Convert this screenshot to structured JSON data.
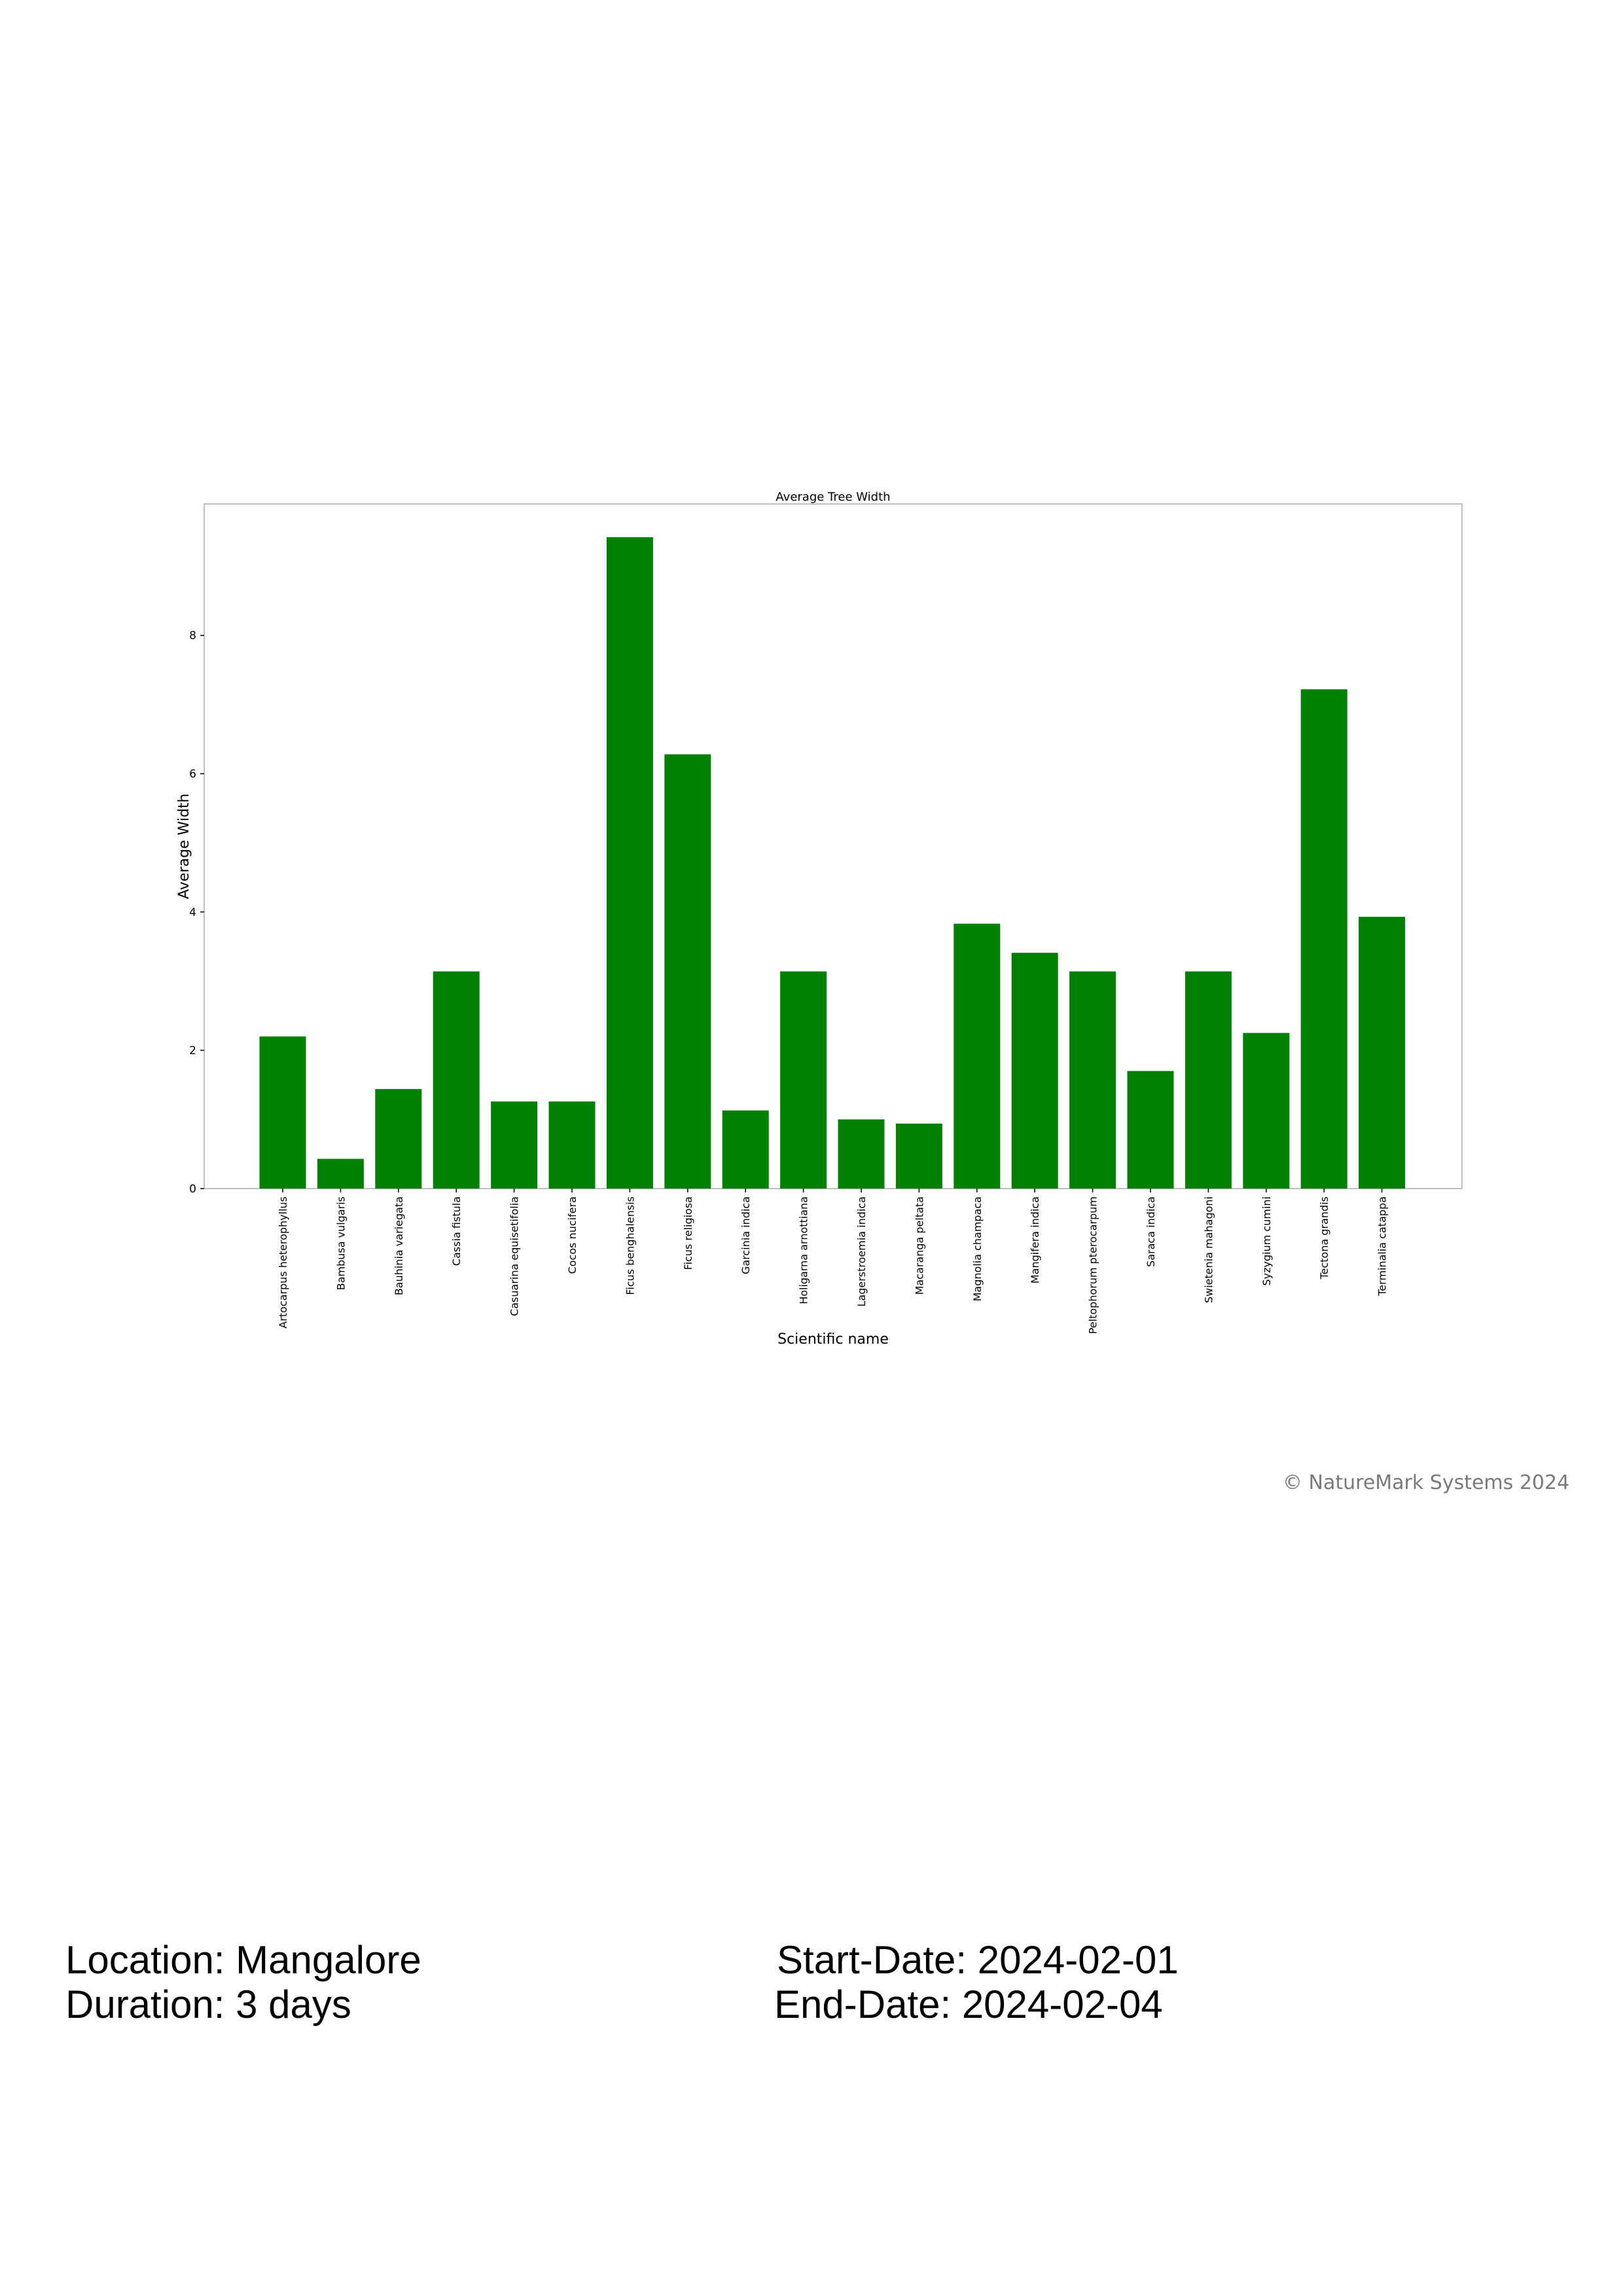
{
  "chart_data": {
    "type": "bar",
    "title": "Average Tree Width",
    "xlabel": "Scientific name",
    "ylabel": "Average Width",
    "categories": [
      "Artocarpus heterophyllus",
      "Bambusa vulgaris",
      "Bauhinia variegata",
      "Cassia fistula",
      "Casuarina equisetifolia",
      "Cocos nucifera",
      "Ficus benghalensis",
      "Ficus religiosa",
      "Garcinia indica",
      "Holigarna arnottiana",
      "Lagerstroemia indica",
      "Macaranga peltata",
      "Magnolia champaca",
      "Mangifera indica",
      "Peltophorum pterocarpum",
      "Saraca indica",
      "Swietenia mahagoni",
      "Syzygium cumini",
      "Tectona grandis",
      "Terminalia catappa"
    ],
    "values": [
      2.2,
      0.43,
      1.44,
      3.14,
      1.26,
      1.26,
      9.42,
      6.28,
      1.13,
      3.14,
      1.0,
      0.94,
      3.83,
      3.41,
      3.14,
      1.7,
      3.14,
      2.25,
      7.22,
      3.93
    ],
    "yticks": [
      0,
      2,
      4,
      6,
      8
    ],
    "ylim": [
      0,
      9.9
    ],
    "bar_color": "#008000",
    "grid": false,
    "legend": "none"
  },
  "footer": {
    "location": "Location: Mangalore",
    "duration": "Duration: 3 days",
    "start_date": "Start-Date: 2024-02-01",
    "end_date": "End-Date: 2024-02-04"
  },
  "copyright": "© NatureMark Systems 2024"
}
